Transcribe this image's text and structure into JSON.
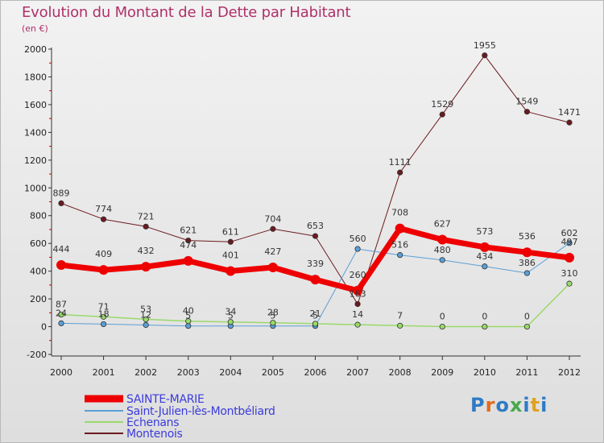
{
  "title": "Evolution du Montant de la Dette par Habitant",
  "unit_label": "(en €)",
  "logo_text": "Proxiti",
  "chart_data": {
    "type": "line",
    "title": "Evolution du Montant de la Dette par Habitant",
    "ylabel": "(en €)",
    "xlabel": "",
    "ylim": [
      -200,
      2000
    ],
    "yticks": [
      -200,
      0,
      200,
      400,
      600,
      800,
      1000,
      1200,
      1400,
      1600,
      1800,
      2000
    ],
    "x": [
      "2000",
      "2001",
      "2002",
      "2003",
      "2004",
      "2005",
      "2006",
      "2007",
      "2008",
      "2009",
      "2010",
      "2011",
      "2012"
    ],
    "grid": false,
    "legend": "bottom-left",
    "series": [
      {
        "name": "Montenois",
        "color": "#6b1a1f",
        "width": 1,
        "values": [
          889,
          774,
          721,
          621,
          611,
          704,
          653,
          163,
          1111,
          1529,
          1955,
          1549,
          1471
        ],
        "labels": [
          "889",
          "774",
          "721",
          "621",
          "611",
          "704",
          "653",
          "163",
          "1111",
          "1529",
          "1955",
          "1549",
          "1471"
        ]
      },
      {
        "name": "Saint-Julien-lès-Montbéliard",
        "color": "#5b9fd6",
        "width": 1,
        "values": [
          24,
          18,
          12,
          5,
          5,
          5,
          5,
          560,
          516,
          480,
          434,
          386,
          602
        ],
        "labels": [
          "24",
          "18",
          "12",
          "5",
          "5",
          "5",
          "5",
          "560",
          "516",
          "480",
          "434",
          "386",
          "602"
        ]
      },
      {
        "name": "Echenans",
        "color": "#9ad96a",
        "width": 1.5,
        "values": [
          87,
          71,
          53,
          40,
          34,
          28,
          21,
          14,
          7,
          0,
          0,
          0,
          310
        ],
        "labels": [
          "87",
          "71",
          "53",
          "40",
          "34",
          "28",
          "21",
          "14",
          "7",
          "0",
          "0",
          "0",
          "310"
        ]
      },
      {
        "name": "SAINTE-MARIE",
        "color": "#ee0000",
        "width": 7,
        "values": [
          444,
          409,
          432,
          474,
          401,
          427,
          339,
          260,
          708,
          627,
          573,
          536,
          497
        ],
        "labels": [
          "444",
          "409",
          "432",
          "474",
          "401",
          "427",
          "339",
          "260",
          "708",
          "627",
          "573",
          "536",
          "497"
        ]
      }
    ],
    "legend_order": [
      "SAINTE-MARIE",
      "Saint-Julien-lès-Montbéliard",
      "Echenans",
      "Montenois"
    ]
  }
}
